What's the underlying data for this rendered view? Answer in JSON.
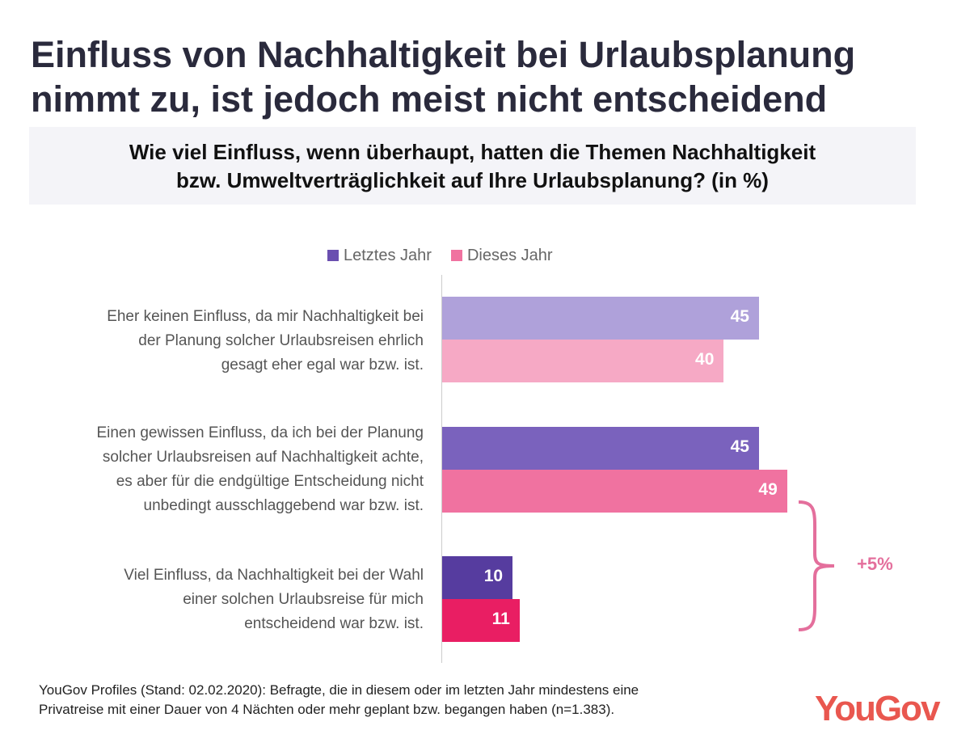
{
  "title_line1": "Einfluss von Nachhaltigkeit bei Urlaubsplanung",
  "title_line2": "nimmt zu, ist jedoch meist nicht entscheidend",
  "question_line1": "Wie viel Einfluss, wenn überhaupt, hatten die Themen Nachhaltigkeit",
  "question_line2": "bzw. Umweltverträglichkeit auf Ihre Urlaubsplanung? (in %)",
  "chart_data": {
    "type": "bar",
    "orientation": "horizontal",
    "categories": [
      "Eher keinen Einfluss, da mir Nachhaltigkeit bei der Planung solcher Urlaubsreisen ehrlich gesagt eher egal war bzw. ist.",
      "Einen gewissen Einfluss, da ich bei der Planung solcher Urlaubsreisen auf Nachhaltigkeit achte, es aber für die endgültige Entscheidung nicht unbedingt ausschlaggebend war bzw. ist.",
      "Viel Einfluss, da Nachhaltigkeit bei der Wahl einer solchen Urlaubsreise für mich entscheidend war bzw. ist."
    ],
    "category_lines": [
      [
        "Eher keinen Einfluss, da mir Nachhaltigkeit bei",
        "der Planung solcher Urlaubsreisen ehrlich",
        "gesagt eher egal war bzw. ist."
      ],
      [
        "Einen gewissen Einfluss, da ich bei der Planung",
        "solcher Urlaubsreisen auf Nachhaltigkeit achte,",
        "es aber für die endgültige Entscheidung nicht",
        "unbedingt ausschlaggebend war bzw. ist."
      ],
      [
        "Viel Einfluss, da Nachhaltigkeit bei der Wahl",
        "einer solchen Urlaubsreise für mich",
        "entscheidend war bzw. ist."
      ]
    ],
    "series": [
      {
        "name": "Letztes Jahr",
        "values": [
          45,
          45,
          10
        ],
        "colors": [
          "#afa1da",
          "#7a62bd",
          "#563c9f"
        ]
      },
      {
        "name": "Dieses Jahr",
        "values": [
          40,
          49,
          11
        ],
        "colors": [
          "#f6a9c5",
          "#f072a0",
          "#e91e63"
        ]
      }
    ],
    "legend_colors": [
      "#6a4fb0",
      "#f072a0"
    ],
    "legend_position": "top",
    "annotation": "+5%",
    "annotation_color": "#e46f9c",
    "xlim": [
      0,
      100
    ],
    "grid": false
  },
  "footnote_line1": "YouGov Profiles (Stand: 02.02.2020): Befragte, die in diesem oder im letzten Jahr mindestens eine",
  "footnote_line2": "Privatreise mit einer Dauer von 4 Nächten oder mehr geplant bzw. begangen haben (n=1.383).",
  "logo": "YouGov"
}
